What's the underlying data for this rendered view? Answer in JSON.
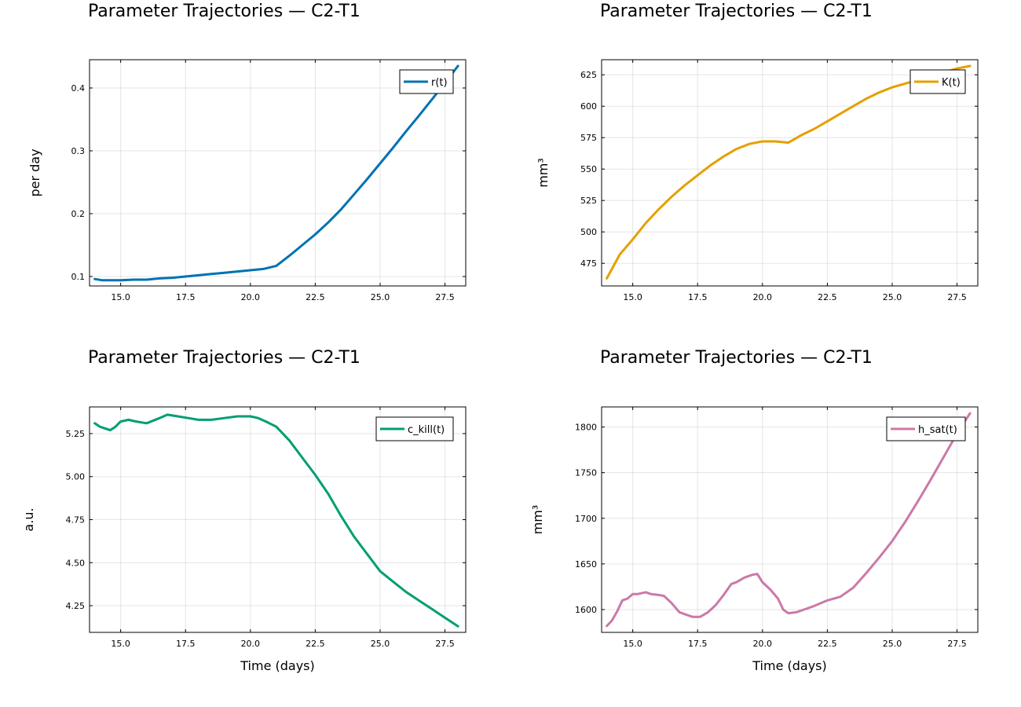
{
  "chart_data": [
    {
      "type": "line",
      "title": "Parameter Trajectories — C2-T1",
      "xlabel": "",
      "ylabel": "per day",
      "xlim": [
        13.8,
        28.3
      ],
      "ylim": [
        0.085,
        0.445
      ],
      "xticks": [
        15.0,
        17.5,
        20.0,
        22.5,
        25.0,
        27.5
      ],
      "xtick_labels": [
        "15.0",
        "17.5",
        "20.0",
        "22.5",
        "25.0",
        "27.5"
      ],
      "yticks": [
        0.1,
        0.2,
        0.3,
        0.4
      ],
      "ytick_labels": [
        "0.1",
        "0.2",
        "0.3",
        "0.4"
      ],
      "grid": true,
      "legend_position": "top-right",
      "series": [
        {
          "name": "r(t)",
          "color": "#0072B2",
          "x": [
            14.0,
            14.3,
            14.6,
            15.0,
            15.5,
            16.0,
            16.5,
            17.0,
            17.5,
            18.0,
            18.5,
            19.0,
            19.5,
            20.0,
            20.5,
            21.0,
            21.5,
            22.0,
            22.5,
            23.0,
            23.5,
            24.0,
            24.5,
            25.0,
            25.5,
            26.0,
            26.5,
            27.0,
            27.5,
            28.0
          ],
          "y": [
            0.096,
            0.094,
            0.094,
            0.094,
            0.095,
            0.095,
            0.097,
            0.098,
            0.1,
            0.102,
            0.104,
            0.106,
            0.108,
            0.11,
            0.112,
            0.117,
            0.133,
            0.15,
            0.167,
            0.186,
            0.207,
            0.231,
            0.255,
            0.28,
            0.305,
            0.331,
            0.356,
            0.382,
            0.408,
            0.435
          ]
        }
      ]
    },
    {
      "type": "line",
      "title": "Parameter Trajectories — C2-T1",
      "xlabel": "",
      "ylabel": "mm³",
      "xlim": [
        13.8,
        28.3
      ],
      "ylim": [
        457,
        637
      ],
      "xticks": [
        15.0,
        17.5,
        20.0,
        22.5,
        25.0,
        27.5
      ],
      "xtick_labels": [
        "15.0",
        "17.5",
        "20.0",
        "22.5",
        "25.0",
        "27.5"
      ],
      "yticks": [
        475,
        500,
        525,
        550,
        575,
        600,
        625
      ],
      "ytick_labels": [
        "475",
        "500",
        "525",
        "550",
        "575",
        "600",
        "625"
      ],
      "grid": true,
      "legend_position": "top-right",
      "series": [
        {
          "name": "K(t)",
          "color": "#E69F00",
          "x": [
            14.0,
            14.5,
            15.0,
            15.5,
            16.0,
            16.5,
            17.0,
            17.5,
            18.0,
            18.5,
            19.0,
            19.5,
            20.0,
            20.5,
            21.0,
            21.5,
            22.0,
            22.5,
            23.0,
            23.5,
            24.0,
            24.5,
            25.0,
            25.5,
            26.0,
            26.5,
            27.0,
            27.5,
            28.0
          ],
          "y": [
            463,
            482,
            494,
            507,
            518,
            528,
            537,
            545,
            553,
            560,
            566,
            570,
            572,
            572,
            571,
            577,
            582,
            588,
            594,
            600,
            606,
            611,
            615,
            618,
            621,
            624,
            627,
            630,
            632
          ]
        }
      ]
    },
    {
      "type": "line",
      "title": "Parameter Trajectories — C2-T1",
      "xlabel": "Time (days)",
      "ylabel": "a.u.",
      "xlim": [
        13.8,
        28.3
      ],
      "ylim": [
        4.095,
        5.405
      ],
      "xticks": [
        15.0,
        17.5,
        20.0,
        22.5,
        25.0,
        27.5
      ],
      "xtick_labels": [
        "15.0",
        "17.5",
        "20.0",
        "22.5",
        "25.0",
        "27.5"
      ],
      "yticks": [
        4.25,
        4.5,
        4.75,
        5.0,
        5.25
      ],
      "ytick_labels": [
        "4.25",
        "4.50",
        "4.75",
        "5.00",
        "5.25"
      ],
      "grid": true,
      "legend_position": "top-right",
      "series": [
        {
          "name": "c_kill(t)",
          "color": "#009E73",
          "x": [
            14.0,
            14.2,
            14.4,
            14.6,
            14.8,
            15.0,
            15.3,
            15.6,
            16.0,
            16.5,
            16.8,
            17.2,
            17.6,
            18.0,
            18.5,
            19.0,
            19.5,
            20.0,
            20.3,
            20.6,
            21.0,
            21.5,
            22.0,
            22.5,
            23.0,
            23.5,
            24.0,
            24.5,
            25.0,
            25.5,
            26.0,
            26.5,
            27.0,
            27.5,
            28.0
          ],
          "y": [
            5.31,
            5.29,
            5.28,
            5.27,
            5.29,
            5.32,
            5.33,
            5.32,
            5.31,
            5.34,
            5.36,
            5.35,
            5.34,
            5.33,
            5.33,
            5.34,
            5.35,
            5.35,
            5.34,
            5.32,
            5.29,
            5.21,
            5.11,
            5.01,
            4.9,
            4.77,
            4.65,
            4.55,
            4.45,
            4.39,
            4.33,
            4.28,
            4.23,
            4.18,
            4.13
          ]
        }
      ]
    },
    {
      "type": "line",
      "title": "Parameter Trajectories — C2-T1",
      "xlabel": "Time (days)",
      "ylabel": "mm³",
      "xlim": [
        13.8,
        28.3
      ],
      "ylim": [
        1575,
        1822
      ],
      "xticks": [
        15.0,
        17.5,
        20.0,
        22.5,
        25.0,
        27.5
      ],
      "xtick_labels": [
        "15.0",
        "17.5",
        "20.0",
        "22.5",
        "25.0",
        "27.5"
      ],
      "yticks": [
        1600,
        1650,
        1700,
        1750,
        1800
      ],
      "ytick_labels": [
        "1600",
        "1650",
        "1700",
        "1750",
        "1800"
      ],
      "grid": true,
      "legend_position": "top-right",
      "series": [
        {
          "name": "h_sat(t)",
          "color": "#CC79A7",
          "x": [
            14.0,
            14.2,
            14.4,
            14.6,
            14.8,
            15.0,
            15.2,
            15.5,
            15.7,
            16.0,
            16.2,
            16.5,
            16.8,
            17.0,
            17.3,
            17.6,
            17.9,
            18.2,
            18.5,
            18.8,
            19.0,
            19.3,
            19.6,
            19.8,
            20.0,
            20.3,
            20.6,
            20.8,
            21.0,
            21.3,
            21.6,
            22.0,
            22.5,
            23.0,
            23.5,
            24.0,
            24.5,
            25.0,
            25.5,
            26.0,
            26.5,
            27.0,
            27.5,
            28.0
          ],
          "y": [
            1582,
            1588,
            1598,
            1610,
            1612,
            1617,
            1617,
            1619,
            1617,
            1616,
            1615,
            1607,
            1597,
            1595,
            1592,
            1592,
            1597,
            1605,
            1616,
            1628,
            1630,
            1635,
            1638,
            1639,
            1630,
            1622,
            1612,
            1600,
            1596,
            1597,
            1600,
            1604,
            1610,
            1614,
            1624,
            1640,
            1657,
            1675,
            1696,
            1719,
            1743,
            1768,
            1793,
            1815
          ]
        }
      ]
    }
  ]
}
